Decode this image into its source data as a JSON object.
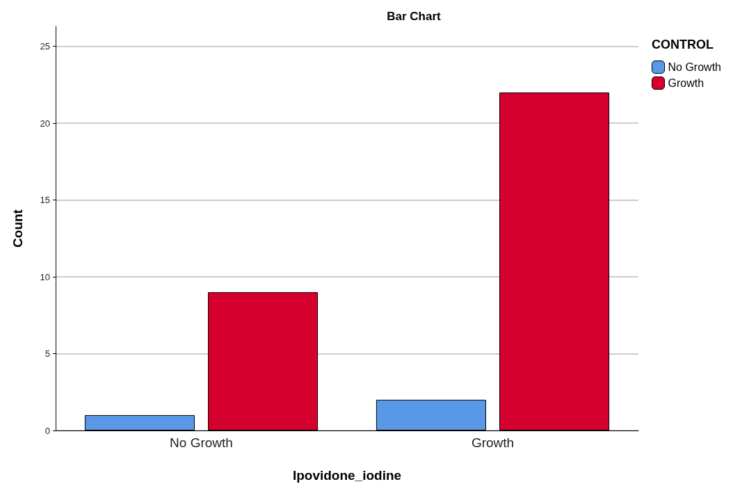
{
  "chart_data": {
    "type": "bar",
    "title": "Bar Chart",
    "xlabel": "Ipovidone_iodine",
    "ylabel": "Count",
    "legend_title": "CONTROL",
    "categories": [
      "No Growth",
      "Growth"
    ],
    "series": [
      {
        "name": "No Growth",
        "color": "#5898e6",
        "values": [
          1,
          2
        ]
      },
      {
        "name": "Growth",
        "color": "#d6002f",
        "values": [
          9,
          22
        ]
      }
    ],
    "ylim": [
      0,
      26.3
    ],
    "yticks": [
      0,
      5,
      10,
      15,
      20,
      25
    ],
    "grid": "y",
    "legend": "top right"
  }
}
